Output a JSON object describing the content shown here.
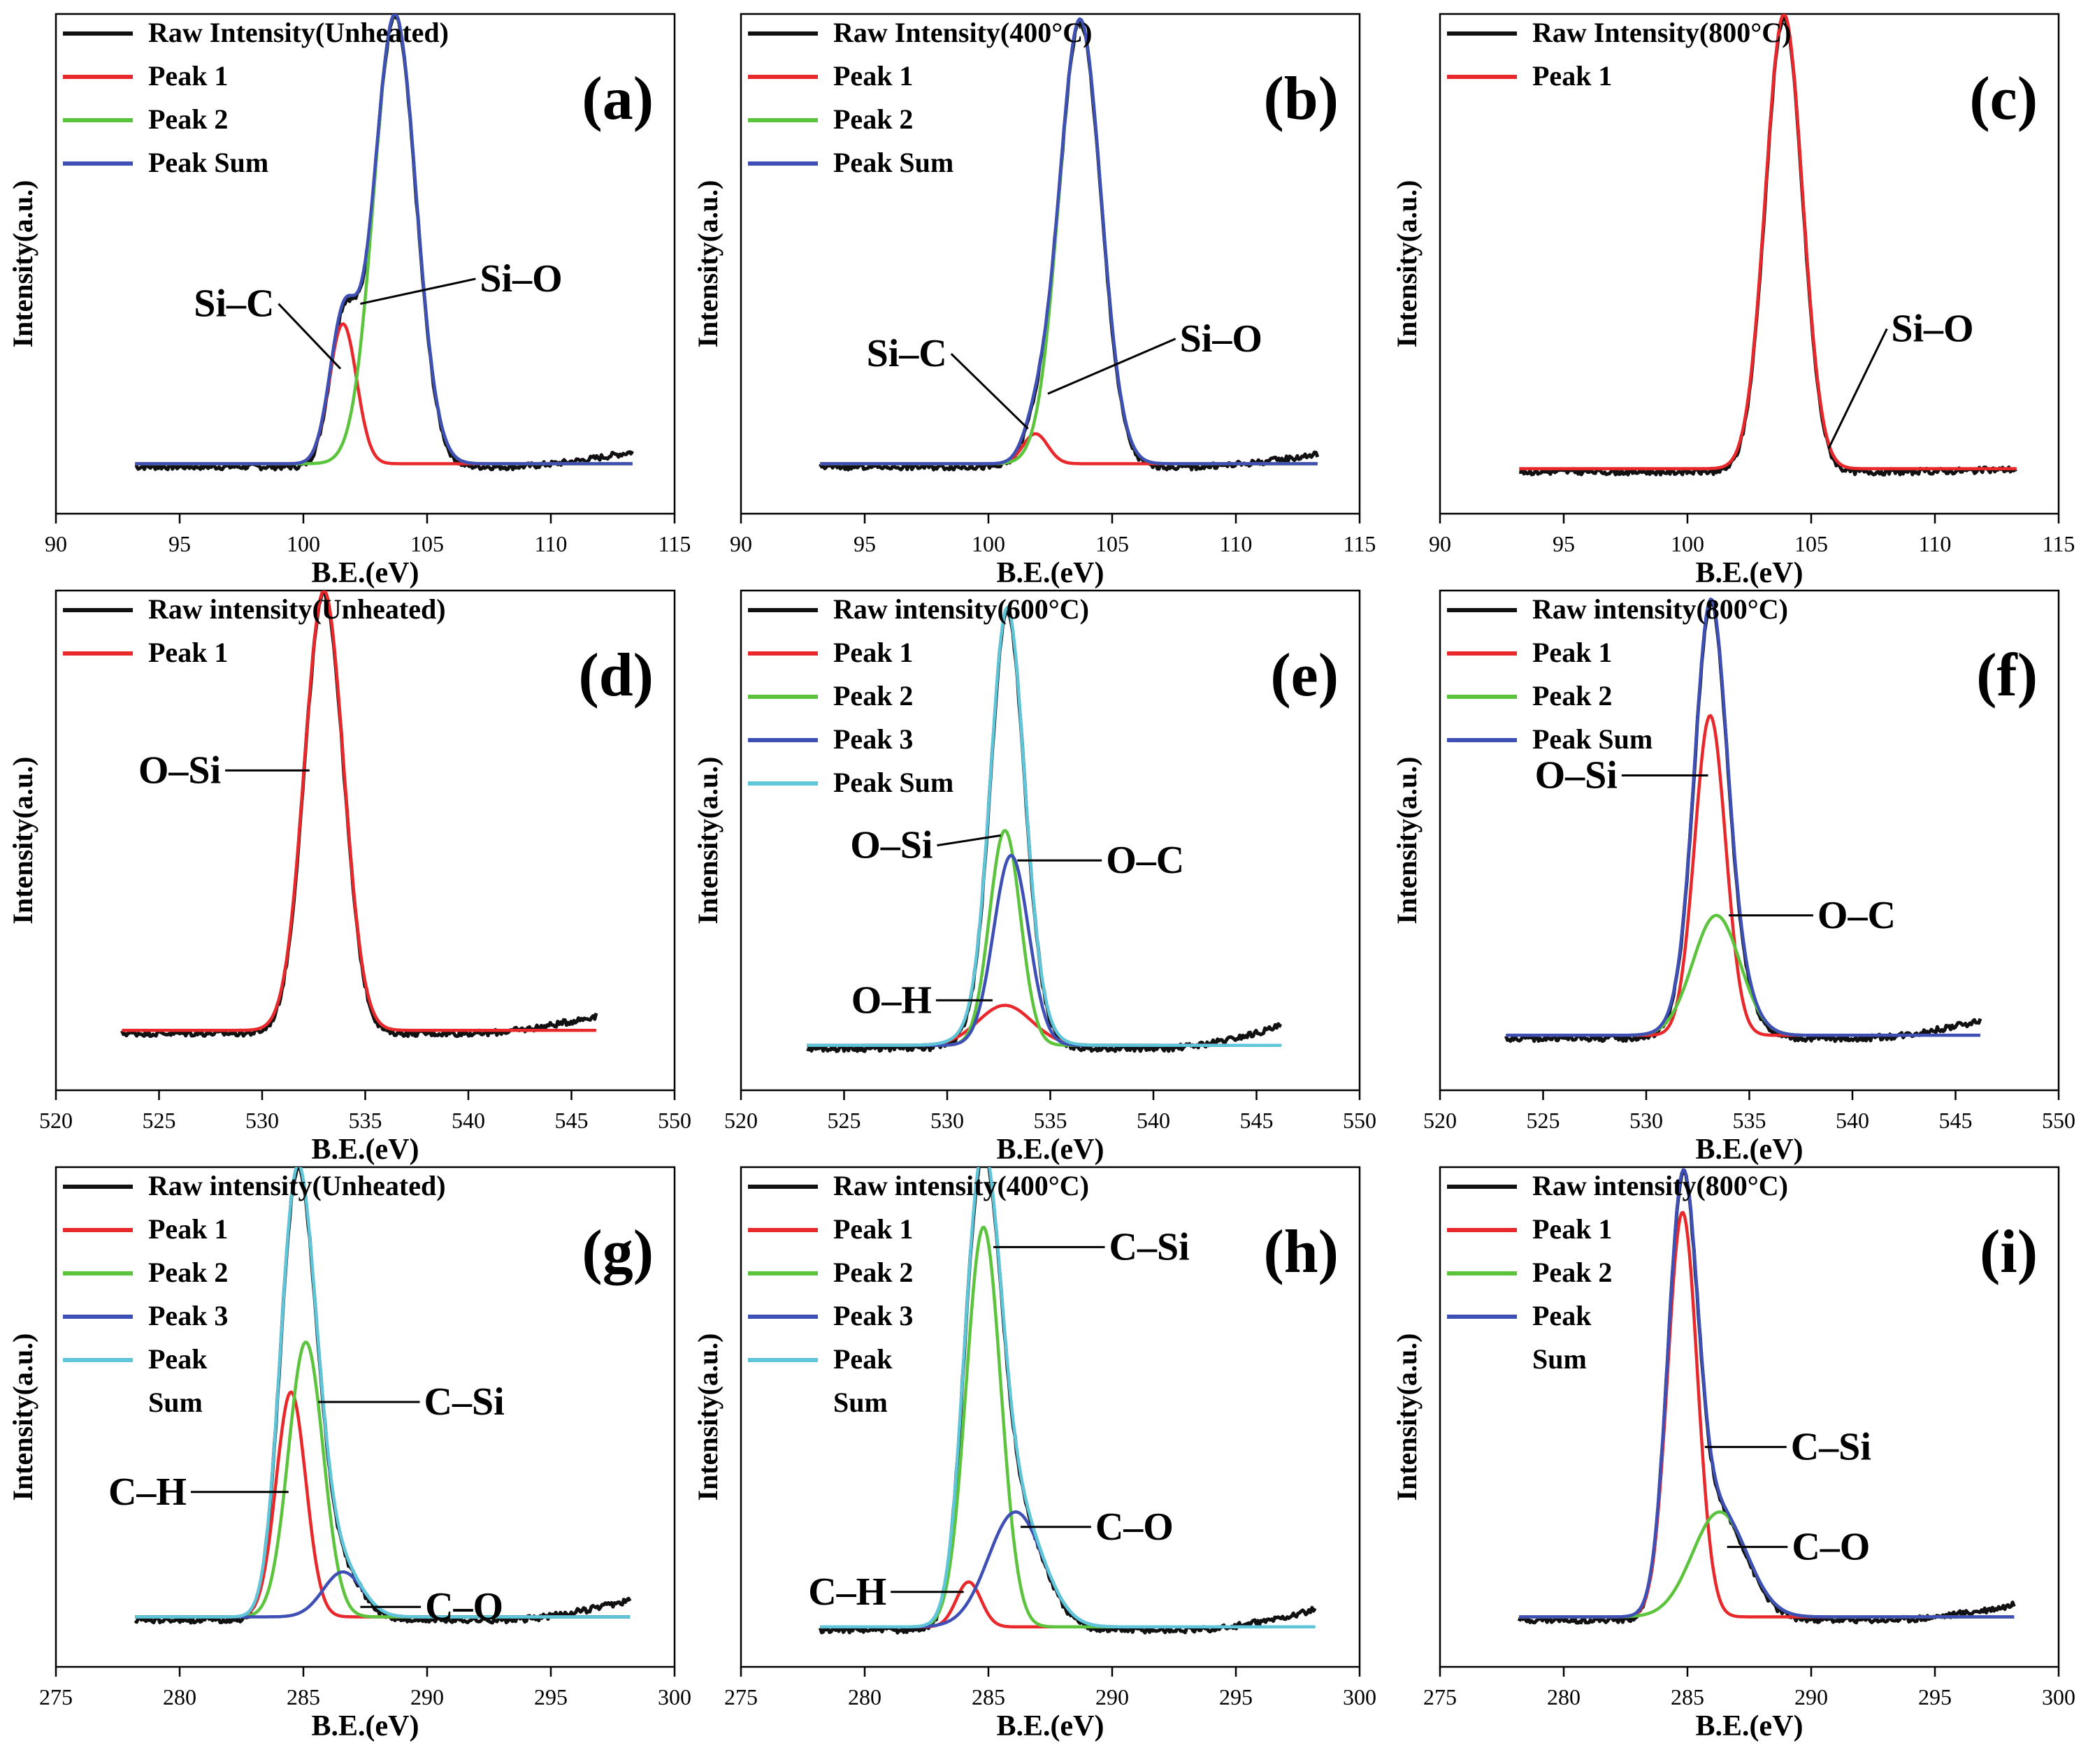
{
  "colors": {
    "raw": "#111111",
    "peak1": "#e8282b",
    "peak2": "#5cc43c",
    "peak3": "#3e4fb5",
    "peak_sum_blue": "#3e4fb5",
    "peak_sum_cyan": "#5ec6d8"
  },
  "chart_data": [
    {
      "id": "a",
      "type": "line",
      "panel_label": "(a)",
      "xlabel": "B.E.(eV)",
      "ylabel": "Intensity(a.u.)",
      "xlim": [
        90,
        115
      ],
      "xticks": [
        "90",
        "95",
        "100",
        "105",
        "110",
        "115"
      ],
      "ylim": [
        0,
        1.0
      ],
      "x_range": [
        93.2,
        113.3
      ],
      "baseline": 0.1,
      "raw_slope": 0.03,
      "legend": [
        "Raw Intensity(Unheated)",
        "Peak 1",
        "Peak 2",
        "Peak Sum"
      ],
      "series": [
        {
          "name": "Raw Intensity(Unheated)",
          "color_key": "raw",
          "kind": "raw",
          "peaks": [
            [
              101.6,
              0.28,
              0.55
            ],
            [
              103.7,
              0.9,
              0.85
            ]
          ]
        },
        {
          "name": "Peak 1",
          "color_key": "peak1",
          "kind": "peak",
          "peaks": [
            [
              101.6,
              0.28,
              0.55
            ]
          ]
        },
        {
          "name": "Peak 2",
          "color_key": "peak2",
          "kind": "peak",
          "peaks": [
            [
              103.7,
              0.9,
              0.85
            ]
          ]
        },
        {
          "name": "Peak Sum",
          "color_key": "peak_sum_blue",
          "kind": "sum",
          "peaks": [
            [
              101.6,
              0.28,
              0.55
            ],
            [
              103.7,
              0.9,
              0.85
            ]
          ]
        }
      ],
      "annotations": [
        {
          "text": "Si–C",
          "text_at": [
            97.2,
            0.42
          ],
          "point": [
            101.5,
            0.29
          ]
        },
        {
          "text": "Si–O",
          "text_at": [
            108.8,
            0.47
          ],
          "point": [
            102.3,
            0.42
          ]
        }
      ]
    },
    {
      "id": "b",
      "type": "line",
      "panel_label": "(b)",
      "xlabel": "B.E.(eV)",
      "ylabel": "Intensity(a.u.)",
      "xlim": [
        90,
        115
      ],
      "xticks": [
        "90",
        "95",
        "100",
        "105",
        "110",
        "115"
      ],
      "ylim": [
        0,
        1.0
      ],
      "x_range": [
        93.2,
        113.3
      ],
      "baseline": 0.1,
      "raw_slope": 0.025,
      "legend": [
        "Raw Intensity(400°C)",
        "Peak 1",
        "Peak 2",
        "Peak Sum"
      ],
      "series": [
        {
          "name": "Raw Intensity(400°C)",
          "color_key": "raw",
          "kind": "raw",
          "peaks": [
            [
              101.9,
              0.06,
              0.5
            ],
            [
              103.7,
              0.89,
              0.85
            ]
          ]
        },
        {
          "name": "Peak 1",
          "color_key": "peak1",
          "kind": "peak",
          "peaks": [
            [
              101.9,
              0.06,
              0.5
            ]
          ]
        },
        {
          "name": "Peak 2",
          "color_key": "peak2",
          "kind": "peak",
          "peaks": [
            [
              103.7,
              0.89,
              0.85
            ]
          ]
        },
        {
          "name": "Peak Sum",
          "color_key": "peak_sum_blue",
          "kind": "sum",
          "peaks": [
            [
              101.9,
              0.06,
              0.5
            ],
            [
              103.7,
              0.89,
              0.85
            ]
          ]
        }
      ],
      "annotations": [
        {
          "text": "Si–C",
          "text_at": [
            96.7,
            0.32
          ],
          "point": [
            101.6,
            0.17
          ]
        },
        {
          "text": "Si–O",
          "text_at": [
            109.4,
            0.35
          ],
          "point": [
            102.4,
            0.24
          ]
        }
      ]
    },
    {
      "id": "c",
      "type": "line",
      "panel_label": "(c)",
      "xlabel": "B.E.(eV)",
      "ylabel": "Intensity(a.u.)",
      "xlim": [
        90,
        115
      ],
      "xticks": [
        "90",
        "95",
        "100",
        "105",
        "110",
        "115"
      ],
      "ylim": [
        0,
        1.0
      ],
      "x_range": [
        93.2,
        113.3
      ],
      "baseline": 0.09,
      "raw_slope": 0.005,
      "legend": [
        "Raw Intensity(800°C)",
        "Peak 1"
      ],
      "series": [
        {
          "name": "Raw Intensity(800°C)",
          "color_key": "raw",
          "kind": "raw",
          "peaks": [
            [
              103.9,
              0.91,
              0.75
            ]
          ]
        },
        {
          "name": "Peak 1",
          "color_key": "peak1",
          "kind": "peak",
          "peaks": [
            [
              103.9,
              0.91,
              0.75
            ]
          ]
        }
      ],
      "annotations": [
        {
          "text": "Si–O",
          "text_at": [
            109.9,
            0.37
          ],
          "point": [
            105.7,
            0.13
          ]
        }
      ]
    },
    {
      "id": "d",
      "type": "line",
      "panel_label": "(d)",
      "xlabel": "B.E.(eV)",
      "ylabel": "Intensity(a.u.)",
      "xlim": [
        520,
        550
      ],
      "xticks": [
        "520",
        "525",
        "530",
        "535",
        "540",
        "545",
        "550"
      ],
      "ylim": [
        0,
        1.0
      ],
      "x_range": [
        523.2,
        546.2
      ],
      "baseline": 0.12,
      "raw_slope": 0.035,
      "legend": [
        "Raw intensity(Unheated)",
        "Peak 1"
      ],
      "series": [
        {
          "name": "Raw intensity(Unheated)",
          "color_key": "raw",
          "kind": "raw",
          "peaks": [
            [
              533.0,
              0.88,
              0.95
            ]
          ]
        },
        {
          "name": "Peak 1",
          "color_key": "peak1",
          "kind": "peak",
          "peaks": [
            [
              533.0,
              0.88,
              0.95
            ]
          ]
        }
      ],
      "annotations": [
        {
          "text": "O–Si",
          "text_at": [
            526.0,
            0.64
          ],
          "point": [
            532.3,
            0.64
          ]
        }
      ]
    },
    {
      "id": "e",
      "type": "line",
      "panel_label": "(e)",
      "xlabel": "B.E.(eV)",
      "ylabel": "Intensity(a.u.)",
      "xlim": [
        520,
        550
      ],
      "xticks": [
        "520",
        "525",
        "530",
        "535",
        "540",
        "545",
        "550"
      ],
      "ylim": [
        0,
        1.0
      ],
      "x_range": [
        523.2,
        546.2
      ],
      "baseline": 0.09,
      "raw_slope": 0.045,
      "legend": [
        "Raw intensity(600°C)",
        "Peak 1",
        "Peak 2",
        "Peak 3",
        "Peak Sum"
      ],
      "series": [
        {
          "name": "Raw intensity(600°C)",
          "color_key": "raw",
          "kind": "raw",
          "peaks": [
            [
              532.8,
              0.08,
              1.3
            ],
            [
              532.8,
              0.43,
              0.75
            ],
            [
              533.1,
              0.38,
              0.85
            ]
          ]
        },
        {
          "name": "Peak 1",
          "color_key": "peak1",
          "kind": "peak",
          "peaks": [
            [
              532.8,
              0.08,
              1.3
            ]
          ]
        },
        {
          "name": "Peak 2",
          "color_key": "peak2",
          "kind": "peak",
          "peaks": [
            [
              532.8,
              0.43,
              0.75
            ]
          ]
        },
        {
          "name": "Peak 3",
          "color_key": "peak3",
          "kind": "peak",
          "peaks": [
            [
              533.1,
              0.38,
              0.85
            ]
          ]
        },
        {
          "name": "Peak Sum",
          "color_key": "peak_sum_cyan",
          "kind": "sum",
          "peaks": [
            [
              532.8,
              0.08,
              1.3
            ],
            [
              532.8,
              0.43,
              0.75
            ],
            [
              533.1,
              0.38,
              0.85
            ]
          ]
        }
      ],
      "annotations": [
        {
          "text": "O–Si",
          "text_at": [
            527.3,
            0.49
          ],
          "point": [
            532.6,
            0.51
          ]
        },
        {
          "text": "O–C",
          "text_at": [
            539.6,
            0.46
          ],
          "point": [
            533.4,
            0.46
          ]
        },
        {
          "text": "O–H",
          "text_at": [
            527.3,
            0.18
          ],
          "point": [
            532.2,
            0.18
          ]
        }
      ]
    },
    {
      "id": "f",
      "type": "line",
      "panel_label": "(f)",
      "xlabel": "B.E.(eV)",
      "ylabel": "Intensity(a.u.)",
      "xlim": [
        520,
        550
      ],
      "xticks": [
        "520",
        "525",
        "530",
        "535",
        "540",
        "545",
        "550"
      ],
      "ylim": [
        0,
        1.0
      ],
      "x_range": [
        523.2,
        546.2
      ],
      "baseline": 0.11,
      "raw_slope": 0.035,
      "legend": [
        "Raw intensity(800°C)",
        "Peak 1",
        "Peak 2",
        "Peak Sum"
      ],
      "series": [
        {
          "name": "Raw intensity(800°C)",
          "color_key": "raw",
          "kind": "raw",
          "peaks": [
            [
              533.1,
              0.64,
              0.75
            ],
            [
              533.4,
              0.24,
              1.15
            ]
          ]
        },
        {
          "name": "Peak 1",
          "color_key": "peak1",
          "kind": "peak",
          "peaks": [
            [
              533.1,
              0.64,
              0.75
            ]
          ]
        },
        {
          "name": "Peak 2",
          "color_key": "peak2",
          "kind": "peak",
          "peaks": [
            [
              533.4,
              0.24,
              1.15
            ]
          ]
        },
        {
          "name": "Peak Sum",
          "color_key": "peak_sum_blue",
          "kind": "sum",
          "peaks": [
            [
              533.1,
              0.64,
              0.75
            ],
            [
              533.4,
              0.24,
              1.15
            ]
          ]
        }
      ],
      "annotations": [
        {
          "text": "O–Si",
          "text_at": [
            526.6,
            0.63
          ],
          "point": [
            533.0,
            0.63
          ]
        },
        {
          "text": "O–C",
          "text_at": [
            540.2,
            0.35
          ],
          "point": [
            534.0,
            0.35
          ]
        }
      ]
    },
    {
      "id": "g",
      "type": "line",
      "panel_label": "(g)",
      "xlabel": "B.E.(eV)",
      "ylabel": "Intensity(a.u.)",
      "xlim": [
        275,
        300
      ],
      "xticks": [
        "275",
        "280",
        "285",
        "290",
        "295",
        "300"
      ],
      "ylim": [
        0,
        1.0
      ],
      "x_range": [
        278.2,
        298.2
      ],
      "baseline": 0.1,
      "raw_slope": 0.04,
      "legend": [
        "Raw intensity(Unheated)",
        "Peak 1",
        "Peak 2",
        "Peak 3",
        "Peak",
        "Sum"
      ],
      "series": [
        {
          "name": "Raw intensity(Unheated)",
          "color_key": "raw",
          "kind": "raw",
          "peaks": [
            [
              284.5,
              0.45,
              0.6
            ],
            [
              285.1,
              0.55,
              0.7
            ],
            [
              286.6,
              0.09,
              0.8
            ]
          ]
        },
        {
          "name": "Peak 1",
          "color_key": "peak1",
          "kind": "peak",
          "peaks": [
            [
              284.5,
              0.45,
              0.6
            ]
          ]
        },
        {
          "name": "Peak 2",
          "color_key": "peak2",
          "kind": "peak",
          "peaks": [
            [
              285.1,
              0.55,
              0.7
            ]
          ]
        },
        {
          "name": "Peak 3",
          "color_key": "peak3",
          "kind": "peak",
          "peaks": [
            [
              286.6,
              0.09,
              0.8
            ]
          ]
        },
        {
          "name": "Peak Sum",
          "color_key": "peak_sum_cyan",
          "kind": "sum",
          "peaks": [
            [
              284.5,
              0.45,
              0.6
            ],
            [
              285.1,
              0.55,
              0.7
            ],
            [
              286.6,
              0.09,
              0.8
            ]
          ]
        }
      ],
      "annotations": [
        {
          "text": "C–Si",
          "text_at": [
            291.5,
            0.53
          ],
          "point": [
            285.6,
            0.53
          ]
        },
        {
          "text": "C–H",
          "text_at": [
            278.7,
            0.35
          ],
          "point": [
            284.4,
            0.35
          ]
        },
        {
          "text": "C–O",
          "text_at": [
            291.5,
            0.12
          ],
          "point": [
            287.3,
            0.12
          ]
        }
      ]
    },
    {
      "id": "h",
      "type": "line",
      "panel_label": "(h)",
      "xlabel": "B.E.(eV)",
      "ylabel": "Intensity(a.u.)",
      "xlim": [
        275,
        300
      ],
      "xticks": [
        "275",
        "280",
        "285",
        "290",
        "295",
        "300"
      ],
      "ylim": [
        0,
        1.0
      ],
      "x_range": [
        278.2,
        298.2
      ],
      "baseline": 0.08,
      "raw_slope": 0.04,
      "legend": [
        "Raw intensity(400°C)",
        "Peak 1",
        "Peak 2",
        "Peak 3",
        "Peak",
        "Sum"
      ],
      "series": [
        {
          "name": "Raw intensity(400°C)",
          "color_key": "raw",
          "kind": "raw",
          "peaks": [
            [
              284.2,
              0.09,
              0.5
            ],
            [
              284.8,
              0.8,
              0.7
            ],
            [
              286.1,
              0.23,
              1.1
            ]
          ]
        },
        {
          "name": "Peak 1",
          "color_key": "peak1",
          "kind": "peak",
          "peaks": [
            [
              284.2,
              0.09,
              0.5
            ]
          ]
        },
        {
          "name": "Peak 2",
          "color_key": "peak2",
          "kind": "peak",
          "peaks": [
            [
              284.8,
              0.8,
              0.7
            ]
          ]
        },
        {
          "name": "Peak 3",
          "color_key": "peak3",
          "kind": "peak",
          "peaks": [
            [
              286.1,
              0.23,
              1.1
            ]
          ]
        },
        {
          "name": "Peak Sum",
          "color_key": "peak_sum_cyan",
          "kind": "sum",
          "peaks": [
            [
              284.2,
              0.09,
              0.5
            ],
            [
              284.8,
              0.8,
              0.7
            ],
            [
              286.1,
              0.23,
              1.1
            ]
          ]
        }
      ],
      "annotations": [
        {
          "text": "C–Si",
          "text_at": [
            291.5,
            0.84
          ],
          "point": [
            285.2,
            0.84
          ]
        },
        {
          "text": "C–H",
          "text_at": [
            279.3,
            0.15
          ],
          "point": [
            284.0,
            0.15
          ]
        },
        {
          "text": "C–O",
          "text_at": [
            290.9,
            0.28
          ],
          "point": [
            286.3,
            0.28
          ]
        }
      ]
    },
    {
      "id": "i",
      "type": "line",
      "panel_label": "(i)",
      "xlabel": "B.E.(eV)",
      "ylabel": "Intensity(a.u.)",
      "xlim": [
        275,
        300
      ],
      "xticks": [
        "275",
        "280",
        "285",
        "290",
        "295",
        "300"
      ],
      "ylim": [
        0,
        1.0
      ],
      "x_range": [
        278.2,
        298.2
      ],
      "baseline": 0.1,
      "raw_slope": 0.03,
      "legend": [
        "Raw intensity(800°C)",
        "Peak 1",
        "Peak 2",
        "Peak",
        "Sum"
      ],
      "series": [
        {
          "name": "Raw intensity(800°C)",
          "color_key": "raw",
          "kind": "raw",
          "peaks": [
            [
              284.8,
              0.81,
              0.6
            ],
            [
              286.3,
              0.21,
              1.1
            ]
          ]
        },
        {
          "name": "Peak 1",
          "color_key": "peak1",
          "kind": "peak",
          "peaks": [
            [
              284.8,
              0.81,
              0.6
            ]
          ]
        },
        {
          "name": "Peak 2",
          "color_key": "peak2",
          "kind": "peak",
          "peaks": [
            [
              286.3,
              0.21,
              1.1
            ]
          ]
        },
        {
          "name": "Peak Sum",
          "color_key": "peak_sum_blue",
          "kind": "sum",
          "peaks": [
            [
              284.8,
              0.81,
              0.6
            ],
            [
              286.3,
              0.21,
              1.1
            ]
          ]
        }
      ],
      "annotations": [
        {
          "text": "C–Si",
          "text_at": [
            290.8,
            0.44
          ],
          "point": [
            285.7,
            0.44
          ]
        },
        {
          "text": "C–O",
          "text_at": [
            290.8,
            0.24
          ],
          "point": [
            286.6,
            0.24
          ]
        }
      ]
    }
  ]
}
